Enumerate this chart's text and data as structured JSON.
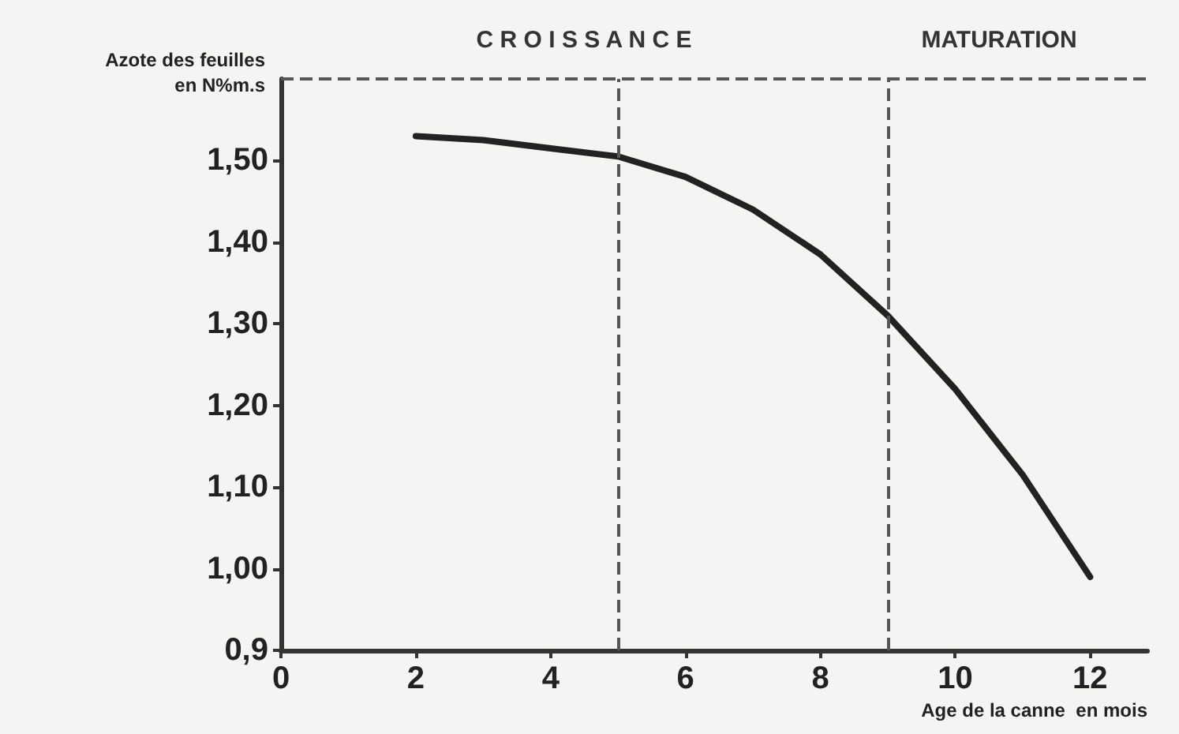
{
  "chart_data": {
    "type": "line",
    "xlabel": "Age de la canne  en mois",
    "ylabel": "Azote des feuilles\nen N%m.s",
    "x": [
      2,
      3,
      4,
      5,
      6,
      7,
      8,
      9,
      10,
      11,
      12
    ],
    "series": [
      {
        "color": "#222222",
        "values": [
          1.53,
          1.525,
          1.515,
          1.505,
          1.48,
          1.44,
          1.385,
          1.31,
          1.22,
          1.115,
          0.99
        ]
      }
    ],
    "xlim": [
      0,
      12.85
    ],
    "xticks": [
      0,
      2,
      4,
      6,
      8,
      10,
      12
    ],
    "ylim": [
      0.9,
      1.6
    ],
    "yticks": [
      {
        "value": 0.9,
        "label": "0,9"
      },
      {
        "value": 1.0,
        "label": "1,00"
      },
      {
        "value": 1.1,
        "label": "1,10"
      },
      {
        "value": 1.2,
        "label": "1,20"
      },
      {
        "value": 1.3,
        "label": "1,30"
      },
      {
        "value": 1.4,
        "label": "1,40"
      },
      {
        "value": 1.5,
        "label": "1,50"
      }
    ],
    "ref_lines": [
      {
        "axis": "x",
        "value": 5,
        "label": null,
        "line_style": "dashed"
      },
      {
        "axis": "x",
        "value": 9,
        "label": null,
        "line_style": "dashed"
      },
      {
        "axis": "y",
        "value": 1.6,
        "label": null,
        "line_style": "dashed"
      }
    ],
    "annotations": [
      "C R O I S S A N C E",
      "MATURATION"
    ],
    "grid": false,
    "marker": "none",
    "line_style": "solid"
  }
}
